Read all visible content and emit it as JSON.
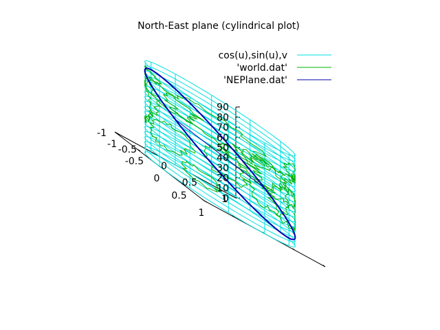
{
  "chart_data": {
    "type": "surface-3d",
    "title": "North-East plane (cylindrical plot)",
    "series": [
      {
        "name": "cos(u),sin(u),v",
        "color": "#00e0e0",
        "kind": "cylinder-mesh",
        "radius": 1,
        "z_range": [
          0,
          90
        ],
        "z_step": 5,
        "u_meridians": 12
      },
      {
        "name": "'world.dat'",
        "color": "#00b000",
        "kind": "coastlines-wrapped-on-cylinder"
      },
      {
        "name": "'NEPlane.dat'",
        "color": "#0000b0",
        "kind": "plane-intersection-curve"
      }
    ],
    "axes": {
      "x": {
        "range": [
          -1,
          1
        ],
        "ticks": [
          "-1",
          "-0.5",
          "0",
          "0.5",
          "1"
        ]
      },
      "y": {
        "range": [
          -1,
          1
        ],
        "ticks": [
          "-1",
          "-0.5",
          "0",
          "0.5",
          "1"
        ]
      },
      "z": {
        "range": [
          0,
          90
        ],
        "ticks": [
          "0",
          "10",
          "20",
          "30",
          "40",
          "50",
          "60",
          "70",
          "80",
          "90"
        ]
      }
    },
    "legend_position": "top-right",
    "grid": false
  }
}
